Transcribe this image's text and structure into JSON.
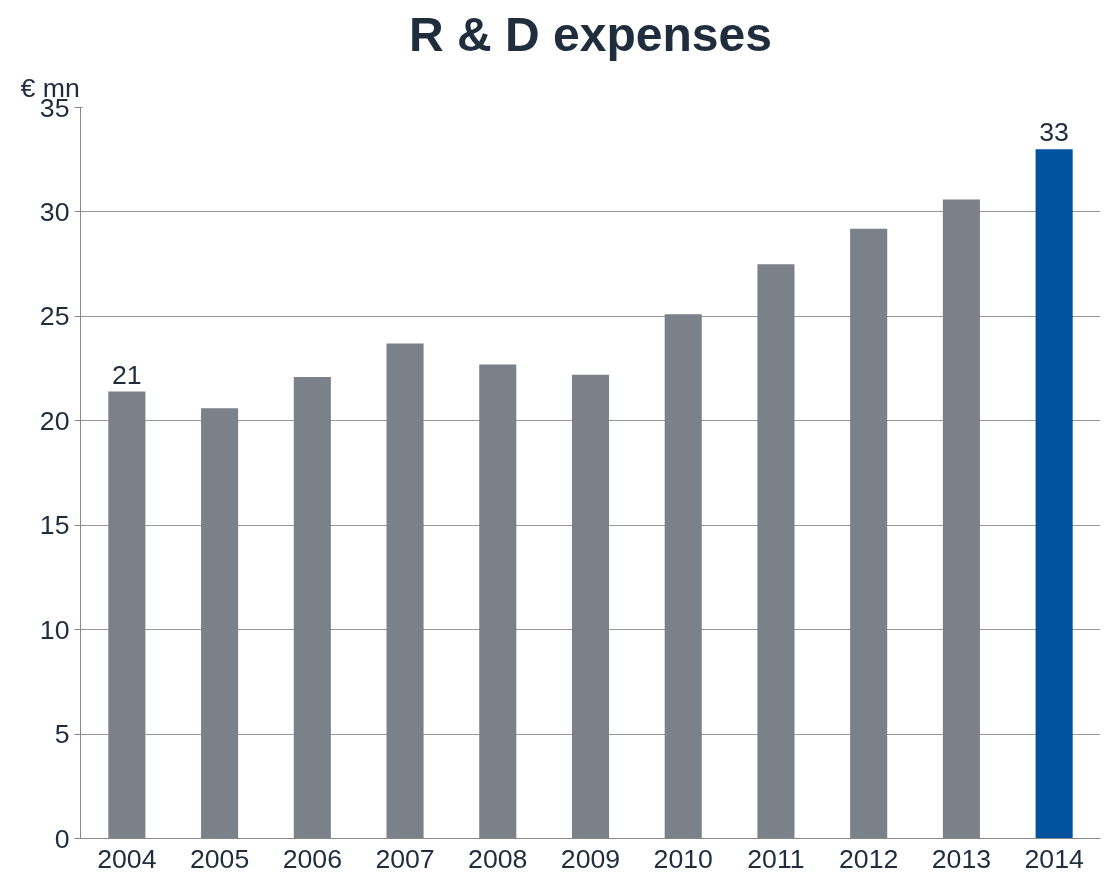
{
  "chart_data": {
    "type": "bar",
    "title": "R & D expenses",
    "ylabel": "€ mn",
    "categories": [
      "2004",
      "2005",
      "2006",
      "2007",
      "2008",
      "2009",
      "2010",
      "2011",
      "2012",
      "2013",
      "2014"
    ],
    "values": [
      21.4,
      20.6,
      22.1,
      23.7,
      22.7,
      22.2,
      25.1,
      27.5,
      29.2,
      30.6,
      33.0
    ],
    "colors": [
      "#7a8189",
      "#7a8189",
      "#7a8189",
      "#7a8189",
      "#7a8189",
      "#7a8189",
      "#7a8189",
      "#7a8189",
      "#7a8189",
      "#7a8189",
      "#00529f"
    ],
    "value_labels": [
      "21",
      null,
      null,
      null,
      null,
      null,
      null,
      null,
      null,
      null,
      "33"
    ],
    "ylim": [
      0,
      35
    ],
    "yticks": [
      0,
      5,
      10,
      15,
      20,
      25,
      30,
      35
    ],
    "grid": "y"
  }
}
